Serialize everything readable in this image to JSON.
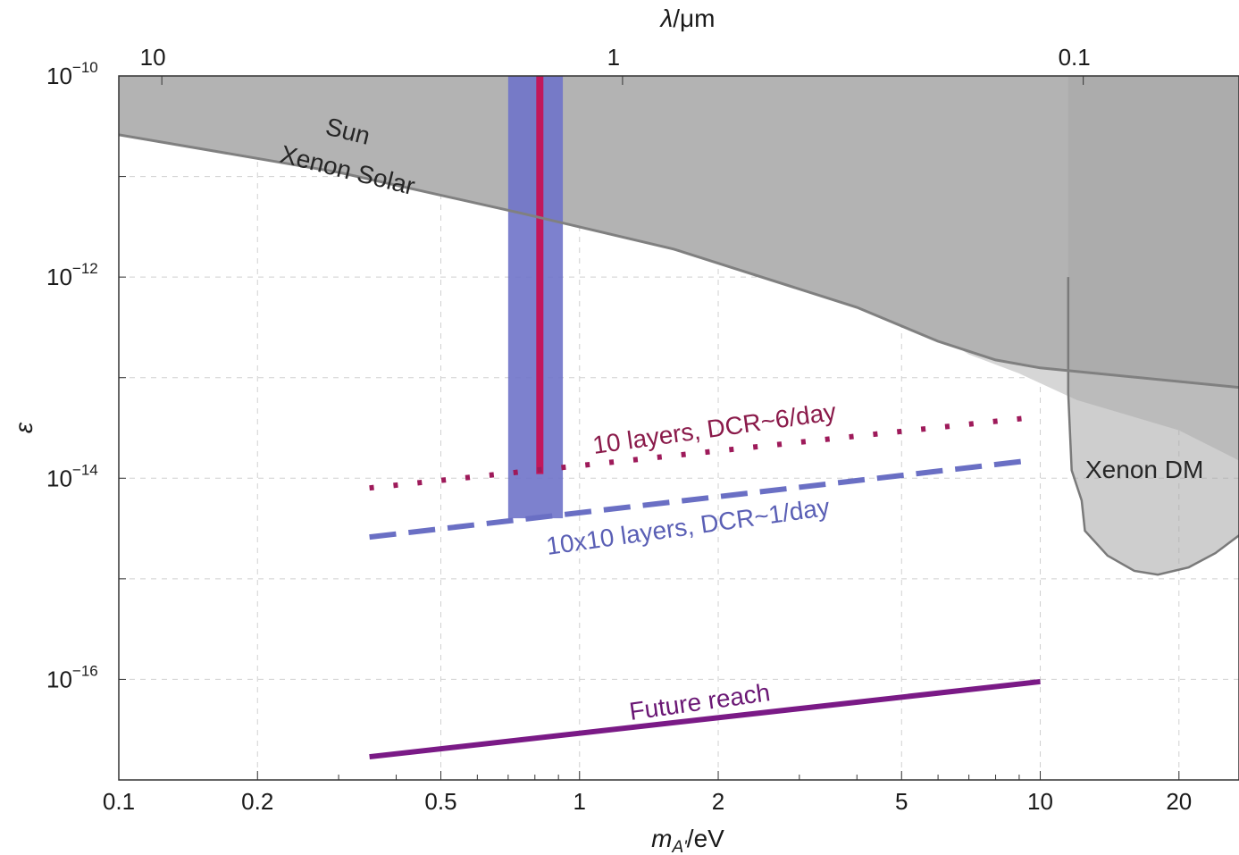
{
  "chart_data": {
    "type": "line",
    "x_axis": {
      "label_base": "m",
      "label_sub": "A'",
      "label_unit": "/eV",
      "scale": "log",
      "range": [
        0.1,
        27
      ],
      "ticks": [
        {
          "value": 0.1,
          "label": "0.1"
        },
        {
          "value": 0.2,
          "label": "0.2"
        },
        {
          "value": 0.5,
          "label": "0.5"
        },
        {
          "value": 1,
          "label": "1"
        },
        {
          "value": 2,
          "label": "2"
        },
        {
          "value": 5,
          "label": "5"
        },
        {
          "value": 10,
          "label": "10"
        },
        {
          "value": 20,
          "label": "20"
        }
      ]
    },
    "top_axis": {
      "label_sym": "λ",
      "label_unit": "/μm",
      "scale": "log",
      "conversion": "lambda_um = 1.2398 / m_eV",
      "ticks": [
        {
          "value": 10,
          "label": "10"
        },
        {
          "value": 1,
          "label": "1"
        },
        {
          "value": 0.1,
          "label": "0.1"
        }
      ]
    },
    "y_axis": {
      "label": "ε",
      "scale": "log",
      "range": [
        1e-17,
        1e-10
      ],
      "ticks": [
        {
          "value": 1e-10,
          "mant": "10",
          "exp": "−10"
        },
        {
          "value": 1e-12,
          "mant": "10",
          "exp": "−12"
        },
        {
          "value": 1e-14,
          "mant": "10",
          "exp": "−14"
        },
        {
          "value": 1e-16,
          "mant": "10",
          "exp": "−16"
        }
      ]
    },
    "grid": true,
    "regions": [
      {
        "name": "Sun",
        "label": "Sun",
        "color": "#b3b3b3",
        "upper_boundary": "top",
        "boundary": [
          [
            0.1,
            3.2e-11
          ],
          [
            0.2,
            1.8e-11
          ],
          [
            0.5,
            7e-12
          ],
          [
            1,
            3.2e-12
          ],
          [
            2,
            1.5e-12
          ],
          [
            3,
            1e-12
          ],
          [
            4.5,
            6e-13
          ],
          [
            7,
            1.7e-13
          ],
          [
            9,
            1.1e-13
          ],
          [
            12,
            6e-14
          ],
          [
            20,
            3e-14
          ],
          [
            27,
            1.5e-14
          ]
        ]
      },
      {
        "name": "Xenon DM",
        "label": "Xenon DM",
        "color": "#a6a6a6",
        "boundary": [
          [
            11.5,
            1e-10
          ],
          [
            11.5,
            1e-12
          ],
          [
            11.5,
            7e-14
          ],
          [
            11.7,
            1.2e-14
          ],
          [
            12.3,
            6e-15
          ],
          [
            12.5,
            3e-15
          ],
          [
            14,
            1.7e-15
          ],
          [
            16,
            1.2e-15
          ],
          [
            18,
            1.1e-15
          ],
          [
            21,
            1.3e-15
          ],
          [
            24,
            1.8e-15
          ],
          [
            27,
            2.7e-15
          ],
          [
            27,
            1e-10
          ]
        ]
      }
    ],
    "series": [
      {
        "name": "Xenon Solar",
        "label": "Xenon Solar",
        "style": "solid",
        "color": "#808080",
        "points": [
          [
            0.1,
            2.6e-11
          ],
          [
            0.3,
            1.1e-11
          ],
          [
            0.75,
            4.3e-12
          ],
          [
            1.6,
            1.9e-12
          ],
          [
            4,
            5e-13
          ],
          [
            6,
            2.3e-13
          ],
          [
            8,
            1.5e-13
          ],
          [
            10,
            1.25e-13
          ],
          [
            27,
            8e-14
          ]
        ]
      },
      {
        "name": "10 layers, DCR~6/day",
        "label": "10 layers, DCR~6/day",
        "style": "dotted",
        "color": "#9e1a5a",
        "points": [
          [
            0.35,
            8e-15
          ],
          [
            9.5,
            4e-14
          ]
        ]
      },
      {
        "name": "10x10 layers, DCR~1/day",
        "label": "10x10 layers, DCR~1/day",
        "style": "dashed",
        "color": "#6a6fc4",
        "points": [
          [
            0.35,
            2.6e-15
          ],
          [
            9.5,
            1.5e-14
          ]
        ]
      },
      {
        "name": "Future reach",
        "label": "Future reach",
        "style": "solid",
        "color": "#7a1a86",
        "points": [
          [
            0.35,
            1.7e-17
          ],
          [
            10,
            9.5e-17
          ]
        ]
      }
    ],
    "bands": [
      {
        "x_range": [
          0.7,
          0.92
        ],
        "y_range": [
          4e-15,
          1e-10
        ],
        "color": "#6f73c9"
      }
    ],
    "vertical_lines": [
      {
        "x": 0.82,
        "y_range": [
          1.1e-14,
          1e-10
        ],
        "color": "#c2185b"
      }
    ]
  }
}
